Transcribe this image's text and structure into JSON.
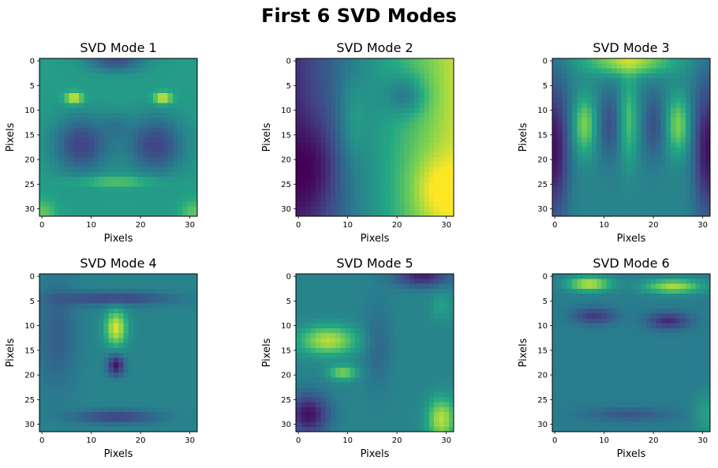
{
  "suptitle": "First 6 SVD Modes",
  "colormap": [
    "#440154",
    "#414487",
    "#2a788e",
    "#22a884",
    "#7ad151",
    "#fde725"
  ],
  "chart_data": [
    {
      "type": "heatmap",
      "title": "SVD Mode 1",
      "xlabel": "Pixels",
      "ylabel": "Pixels",
      "size": 32,
      "xticks": [
        0,
        10,
        20,
        30
      ],
      "yticks": [
        0,
        5,
        10,
        15,
        20,
        25,
        30
      ],
      "xlim": [
        0,
        31
      ],
      "ylim": [
        31,
        0
      ],
      "grid": false
    },
    {
      "type": "heatmap",
      "title": "SVD Mode 2",
      "xlabel": "Pixels",
      "ylabel": "Pixels",
      "size": 32,
      "xticks": [
        0,
        10,
        20,
        30
      ],
      "yticks": [
        0,
        5,
        10,
        15,
        20,
        25,
        30
      ],
      "xlim": [
        0,
        31
      ],
      "ylim": [
        31,
        0
      ],
      "grid": false
    },
    {
      "type": "heatmap",
      "title": "SVD Mode 3",
      "xlabel": "Pixels",
      "ylabel": "Pixels",
      "size": 32,
      "xticks": [
        0,
        10,
        20,
        30
      ],
      "yticks": [
        0,
        5,
        10,
        15,
        20,
        25,
        30
      ],
      "xlim": [
        0,
        31
      ],
      "ylim": [
        31,
        0
      ],
      "grid": false
    },
    {
      "type": "heatmap",
      "title": "SVD Mode 4",
      "xlabel": "Pixels",
      "ylabel": "Pixels",
      "size": 32,
      "xticks": [
        0,
        10,
        20,
        30
      ],
      "yticks": [
        0,
        5,
        10,
        15,
        20,
        25,
        30
      ],
      "xlim": [
        0,
        31
      ],
      "ylim": [
        31,
        0
      ],
      "grid": false
    },
    {
      "type": "heatmap",
      "title": "SVD Mode 5",
      "xlabel": "Pixels",
      "ylabel": "Pixels",
      "size": 32,
      "xticks": [
        0,
        10,
        20,
        30
      ],
      "yticks": [
        0,
        5,
        10,
        15,
        20,
        25,
        30
      ],
      "xlim": [
        0,
        31
      ],
      "ylim": [
        31,
        0
      ],
      "grid": false
    },
    {
      "type": "heatmap",
      "title": "SVD Mode 6",
      "xlabel": "Pixels",
      "ylabel": "Pixels",
      "size": 32,
      "xticks": [
        0,
        10,
        20,
        30
      ],
      "yticks": [
        0,
        5,
        10,
        15,
        20,
        25,
        30
      ],
      "xlim": [
        0,
        31
      ],
      "ylim": [
        31,
        0
      ],
      "grid": false
    }
  ]
}
